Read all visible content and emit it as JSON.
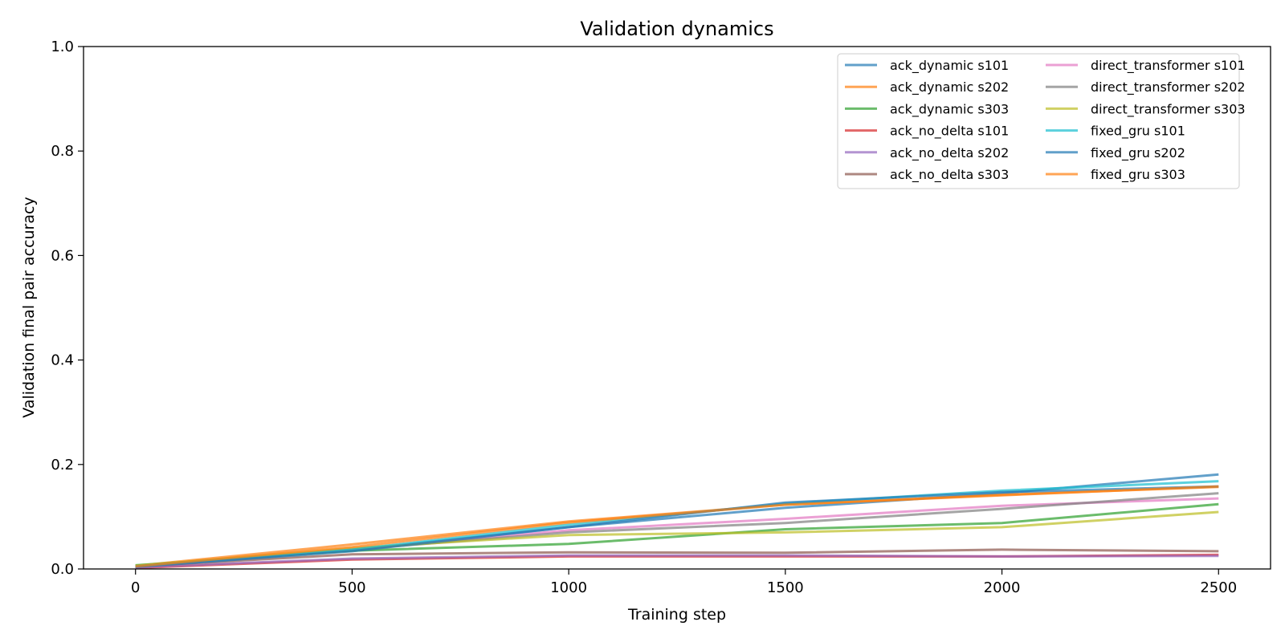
{
  "chart_data": {
    "type": "line",
    "title": "Validation dynamics",
    "xlabel": "Training step",
    "ylabel": "Validation final pair accuracy",
    "xlim": [
      -120,
      2620
    ],
    "ylim": [
      0,
      1.0
    ],
    "xticks": [
      0,
      500,
      1000,
      1500,
      2000,
      2500
    ],
    "yticks": [
      0.0,
      0.2,
      0.4,
      0.6,
      0.8,
      1.0
    ],
    "xtick_labels": [
      "0",
      "500",
      "1000",
      "1500",
      "2000",
      "2500"
    ],
    "ytick_labels": [
      "0.0",
      "0.2",
      "0.4",
      "0.6",
      "0.8",
      "1.0"
    ],
    "grid": false,
    "legend_position": "top-right",
    "legend_columns": 2,
    "x": [
      0,
      500,
      1000,
      1500,
      2000,
      2500
    ],
    "series": [
      {
        "name": "ack_dynamic s101",
        "color": "#1f77b4",
        "values": [
          0.004,
          0.036,
          0.08,
          0.117,
          0.145,
          0.181
        ]
      },
      {
        "name": "ack_dynamic s202",
        "color": "#ff7f0e",
        "values": [
          0.006,
          0.047,
          0.091,
          0.123,
          0.142,
          0.157
        ]
      },
      {
        "name": "ack_dynamic s303",
        "color": "#2ca02c",
        "values": [
          0.007,
          0.035,
          0.048,
          0.076,
          0.088,
          0.124
        ]
      },
      {
        "name": "ack_no_delta s101",
        "color": "#d62728",
        "values": [
          0.002,
          0.018,
          0.024,
          0.024,
          0.024,
          0.027
        ]
      },
      {
        "name": "ack_no_delta s202",
        "color": "#9467bd",
        "values": [
          0.003,
          0.02,
          0.026,
          0.026,
          0.024,
          0.025
        ]
      },
      {
        "name": "ack_no_delta s303",
        "color": "#8c564b",
        "values": [
          0.005,
          0.028,
          0.032,
          0.031,
          0.037,
          0.034
        ]
      },
      {
        "name": "direct_transformer s101",
        "color": "#e377c2",
        "values": [
          0.004,
          0.037,
          0.074,
          0.096,
          0.121,
          0.135
        ]
      },
      {
        "name": "direct_transformer s202",
        "color": "#7f7f7f",
        "values": [
          0.005,
          0.037,
          0.07,
          0.088,
          0.115,
          0.145
        ]
      },
      {
        "name": "direct_transformer s303",
        "color": "#bcbd22",
        "values": [
          0.006,
          0.04,
          0.065,
          0.07,
          0.08,
          0.109
        ]
      },
      {
        "name": "fixed_gru s101",
        "color": "#17becf",
        "values": [
          0.005,
          0.037,
          0.085,
          0.125,
          0.15,
          0.168
        ]
      },
      {
        "name": "fixed_gru s202",
        "color": "#1f77b4",
        "values": [
          0.004,
          0.034,
          0.08,
          0.127,
          0.147,
          0.158
        ]
      },
      {
        "name": "fixed_gru s303",
        "color": "#ff7f0e",
        "values": [
          0.005,
          0.042,
          0.089,
          0.123,
          0.141,
          0.158
        ]
      }
    ]
  }
}
